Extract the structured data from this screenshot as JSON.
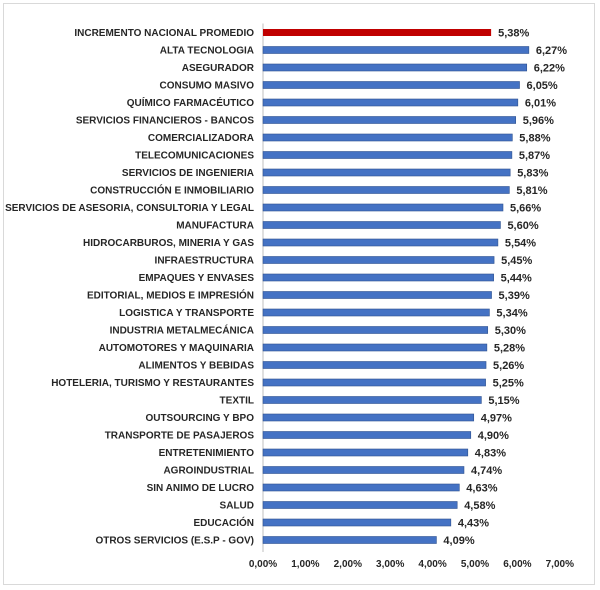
{
  "chart_data": {
    "type": "bar",
    "orientation": "horizontal",
    "title": "",
    "xlabel": "",
    "ylabel": "",
    "xlim": [
      0,
      7
    ],
    "x_ticks": [
      "0,00%",
      "1,00%",
      "2,00%",
      "3,00%",
      "4,00%",
      "5,00%",
      "6,00%",
      "7,00%"
    ],
    "grid": false,
    "colors": {
      "default": "#4472c4",
      "highlight": "#c00000"
    },
    "highlight_index": 0,
    "categories": [
      "INCREMENTO NACIONAL PROMEDIO",
      "ALTA TECNOLOGIA",
      "ASEGURADOR",
      "CONSUMO MASIVO",
      "QUÍMICO FARMACÉUTICO",
      "SERVICIOS FINANCIEROS - BANCOS",
      "COMERCIALIZADORA",
      "TELECOMUNICACIONES",
      "SERVICIOS DE INGENIERIA",
      "CONSTRUCCIÓN E INMOBILIARIO",
      "SERVICIOS DE ASESORIA, CONSULTORIA Y LEGAL",
      "MANUFACTURA",
      "HIDROCARBUROS, MINERIA Y GAS",
      "INFRAESTRUCTURA",
      "EMPAQUES Y ENVASES",
      "EDITORIAL, MEDIOS E IMPRESIÓN",
      "LOGISTICA Y TRANSPORTE",
      "INDUSTRIA METALMECÁNICA",
      "AUTOMOTORES Y MAQUINARIA",
      "ALIMENTOS Y BEBIDAS",
      "HOTELERIA, TURISMO Y RESTAURANTES",
      "TEXTIL",
      "OUTSOURCING Y BPO",
      "TRANSPORTE DE PASAJEROS",
      "ENTRETENIMIENTO",
      "AGROINDUSTRIAL",
      "SIN ANIMO DE LUCRO",
      "SALUD",
      "EDUCACIÓN",
      "OTROS SERVICIOS (E.S.P - GOV)"
    ],
    "values": [
      5.38,
      6.27,
      6.22,
      6.05,
      6.01,
      5.96,
      5.88,
      5.87,
      5.83,
      5.81,
      5.66,
      5.6,
      5.54,
      5.45,
      5.44,
      5.39,
      5.34,
      5.3,
      5.28,
      5.26,
      5.25,
      5.15,
      4.97,
      4.9,
      4.83,
      4.74,
      4.63,
      4.58,
      4.43,
      4.09
    ],
    "value_labels": [
      "5,38%",
      "6,27%",
      "6,22%",
      "6,05%",
      "6,01%",
      "5,96%",
      "5,88%",
      "5,87%",
      "5,83%",
      "5,81%",
      "5,66%",
      "5,60%",
      "5,54%",
      "5,45%",
      "5,44%",
      "5,39%",
      "5,34%",
      "5,30%",
      "5,28%",
      "5,26%",
      "5,25%",
      "5,15%",
      "4,97%",
      "4,90%",
      "4,83%",
      "4,74%",
      "4,63%",
      "4,58%",
      "4,43%",
      "4,09%"
    ]
  }
}
